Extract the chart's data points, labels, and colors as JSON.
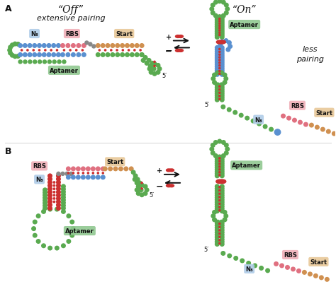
{
  "panel_A_label": "A",
  "panel_B_label": "B",
  "off_label": "“Off”",
  "on_label": "“On”",
  "extensive_pairing": "extensive pairing",
  "less_pairing_1": "less",
  "less_pairing_2": "pairing",
  "aptamer_label": "Aptamer",
  "rbs_label": "RBS",
  "start_label": "Start",
  "n8_label": "N₈",
  "five_prime": "5′",
  "green": "#5aaa50",
  "green_dark": "#3a7a30",
  "blue": "#5a90d0",
  "blue_dark": "#2a60a0",
  "red": "#cc3030",
  "red_dark": "#aa1010",
  "pink": "#e07080",
  "gray": "#888888",
  "tan": "#d09050",
  "pink_bg": "#f0b0b8",
  "blue_bg": "#b0cce8",
  "green_bg": "#90c890",
  "tan_bg": "#e8c898",
  "black": "#111111",
  "white": "#ffffff",
  "bg_color": "#ffffff",
  "dot_r": 2.8,
  "bp_r": 1.1
}
